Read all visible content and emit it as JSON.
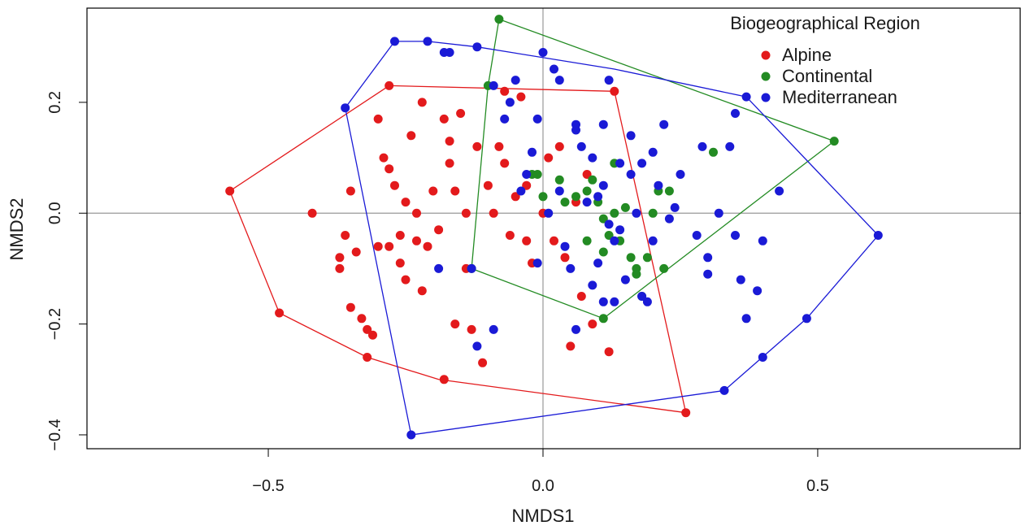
{
  "chart_data": {
    "type": "scatter",
    "xlabel": "NMDS1",
    "ylabel": "NMDS2",
    "xlim": [
      -0.83,
      0.87
    ],
    "ylim": [
      -0.425,
      0.37
    ],
    "xticks": [
      -0.5,
      0.0,
      0.5
    ],
    "xtick_labels": [
      "−0.5",
      "0.0",
      "0.5"
    ],
    "yticks": [
      -0.4,
      -0.2,
      0.0,
      0.2
    ],
    "ytick_labels": [
      "−0.4",
      "−0.2",
      "0.0",
      "0.2"
    ],
    "reference_lines": {
      "x": 0,
      "y": 0,
      "color": "#999999"
    },
    "legend": {
      "title": "Biogeographical Region",
      "placement": "top-right"
    },
    "series": [
      {
        "name": "Alpine",
        "color": "#e31a1c",
        "hull": [
          [
            -0.57,
            0.04
          ],
          [
            -0.48,
            -0.18
          ],
          [
            -0.32,
            -0.26
          ],
          [
            -0.19,
            -0.3
          ],
          [
            0.26,
            -0.36
          ],
          [
            0.13,
            0.22
          ],
          [
            -0.28,
            0.23
          ]
        ],
        "points": [
          [
            -0.57,
            0.04
          ],
          [
            -0.48,
            -0.18
          ],
          [
            -0.42,
            0.0
          ],
          [
            -0.37,
            -0.08
          ],
          [
            -0.37,
            -0.1
          ],
          [
            -0.36,
            -0.04
          ],
          [
            -0.35,
            -0.17
          ],
          [
            -0.35,
            0.04
          ],
          [
            -0.34,
            -0.07
          ],
          [
            -0.33,
            -0.19
          ],
          [
            -0.32,
            -0.21
          ],
          [
            -0.32,
            -0.26
          ],
          [
            -0.31,
            -0.22
          ],
          [
            -0.3,
            0.17
          ],
          [
            -0.3,
            -0.06
          ],
          [
            -0.29,
            0.1
          ],
          [
            -0.28,
            -0.06
          ],
          [
            -0.28,
            0.08
          ],
          [
            -0.27,
            0.05
          ],
          [
            -0.26,
            -0.04
          ],
          [
            -0.26,
            -0.09
          ],
          [
            -0.25,
            0.02
          ],
          [
            -0.25,
            -0.12
          ],
          [
            -0.24,
            0.14
          ],
          [
            -0.23,
            0.0
          ],
          [
            -0.23,
            -0.05
          ],
          [
            -0.22,
            0.2
          ],
          [
            -0.22,
            -0.14
          ],
          [
            -0.21,
            -0.06
          ],
          [
            -0.2,
            0.04
          ],
          [
            -0.19,
            -0.03
          ],
          [
            -0.18,
            -0.3
          ],
          [
            -0.18,
            0.17
          ],
          [
            -0.17,
            0.13
          ],
          [
            -0.17,
            0.09
          ],
          [
            -0.16,
            -0.2
          ],
          [
            -0.16,
            0.04
          ],
          [
            -0.15,
            0.18
          ],
          [
            -0.14,
            -0.1
          ],
          [
            -0.14,
            0.0
          ],
          [
            -0.13,
            -0.21
          ],
          [
            -0.12,
            0.12
          ],
          [
            -0.11,
            -0.27
          ],
          [
            -0.1,
            0.05
          ],
          [
            -0.09,
            0.0
          ],
          [
            -0.08,
            0.12
          ],
          [
            -0.07,
            0.22
          ],
          [
            -0.07,
            0.09
          ],
          [
            -0.06,
            -0.04
          ],
          [
            -0.05,
            0.03
          ],
          [
            -0.04,
            0.21
          ],
          [
            -0.03,
            -0.05
          ],
          [
            -0.02,
            -0.09
          ],
          [
            0.0,
            0.0
          ],
          [
            0.01,
            0.1
          ],
          [
            0.02,
            -0.05
          ],
          [
            0.03,
            0.12
          ],
          [
            0.04,
            -0.08
          ],
          [
            0.05,
            -0.24
          ],
          [
            0.06,
            0.02
          ],
          [
            0.07,
            -0.15
          ],
          [
            0.08,
            0.07
          ],
          [
            0.09,
            -0.2
          ],
          [
            0.12,
            -0.25
          ],
          [
            0.26,
            -0.36
          ],
          [
            0.13,
            0.22
          ],
          [
            -0.28,
            0.23
          ],
          [
            -0.03,
            0.05
          ]
        ]
      },
      {
        "name": "Continental",
        "color": "#238b23",
        "hull": [
          [
            -0.13,
            -0.1
          ],
          [
            0.11,
            -0.19
          ],
          [
            0.53,
            0.13
          ],
          [
            -0.08,
            0.35
          ],
          [
            -0.1,
            0.23
          ]
        ],
        "points": [
          [
            -0.13,
            -0.1
          ],
          [
            -0.08,
            0.35
          ],
          [
            -0.1,
            0.23
          ],
          [
            -0.02,
            0.07
          ],
          [
            -0.01,
            0.07
          ],
          [
            0.0,
            0.03
          ],
          [
            0.03,
            0.06
          ],
          [
            0.04,
            0.02
          ],
          [
            0.06,
            0.03
          ],
          [
            0.08,
            0.04
          ],
          [
            0.09,
            0.06
          ],
          [
            0.1,
            0.02
          ],
          [
            0.11,
            -0.01
          ],
          [
            0.11,
            -0.07
          ],
          [
            0.12,
            -0.04
          ],
          [
            0.13,
            0.09
          ],
          [
            0.13,
            0.0
          ],
          [
            0.14,
            -0.05
          ],
          [
            0.15,
            0.01
          ],
          [
            0.16,
            -0.08
          ],
          [
            0.17,
            -0.1
          ],
          [
            0.17,
            -0.11
          ],
          [
            0.18,
            -0.15
          ],
          [
            0.19,
            -0.08
          ],
          [
            0.2,
            0.0
          ],
          [
            0.21,
            0.04
          ],
          [
            0.22,
            -0.1
          ],
          [
            0.23,
            0.04
          ],
          [
            0.31,
            0.11
          ],
          [
            0.53,
            0.13
          ],
          [
            0.11,
            -0.19
          ],
          [
            0.08,
            -0.05
          ]
        ]
      },
      {
        "name": "Mediterranean",
        "color": "#1a1ad6",
        "hull": [
          [
            -0.24,
            -0.4
          ],
          [
            0.33,
            -0.32
          ],
          [
            0.48,
            -0.19
          ],
          [
            0.61,
            -0.04
          ],
          [
            0.37,
            0.21
          ],
          [
            0.13,
            0.26
          ],
          [
            -0.12,
            0.3
          ],
          [
            -0.21,
            0.31
          ],
          [
            -0.27,
            0.31
          ],
          [
            -0.36,
            0.19
          ]
        ],
        "points": [
          [
            -0.36,
            0.19
          ],
          [
            -0.27,
            0.31
          ],
          [
            -0.21,
            0.31
          ],
          [
            -0.18,
            0.29
          ],
          [
            -0.17,
            0.29
          ],
          [
            -0.12,
            0.3
          ],
          [
            -0.19,
            -0.1
          ],
          [
            -0.13,
            -0.1
          ],
          [
            -0.12,
            -0.24
          ],
          [
            -0.09,
            -0.21
          ],
          [
            -0.09,
            0.23
          ],
          [
            -0.07,
            0.17
          ],
          [
            -0.06,
            0.2
          ],
          [
            -0.05,
            0.24
          ],
          [
            -0.04,
            0.04
          ],
          [
            -0.03,
            0.07
          ],
          [
            -0.02,
            0.11
          ],
          [
            -0.01,
            0.17
          ],
          [
            -0.01,
            -0.09
          ],
          [
            0.0,
            0.29
          ],
          [
            0.01,
            0.0
          ],
          [
            0.02,
            0.26
          ],
          [
            0.03,
            0.24
          ],
          [
            0.03,
            0.04
          ],
          [
            0.04,
            -0.06
          ],
          [
            0.05,
            -0.1
          ],
          [
            0.06,
            0.16
          ],
          [
            0.06,
            -0.21
          ],
          [
            0.07,
            0.12
          ],
          [
            0.08,
            0.02
          ],
          [
            0.09,
            0.1
          ],
          [
            0.09,
            -0.13
          ],
          [
            0.1,
            0.03
          ],
          [
            0.1,
            -0.09
          ],
          [
            0.11,
            0.05
          ],
          [
            0.11,
            -0.16
          ],
          [
            0.12,
            0.24
          ],
          [
            0.12,
            -0.02
          ],
          [
            0.13,
            -0.16
          ],
          [
            0.14,
            0.09
          ],
          [
            0.14,
            -0.03
          ],
          [
            0.15,
            -0.12
          ],
          [
            0.16,
            0.14
          ],
          [
            0.16,
            0.07
          ],
          [
            0.17,
            0.0
          ],
          [
            0.18,
            0.09
          ],
          [
            0.18,
            -0.15
          ],
          [
            0.19,
            -0.16
          ],
          [
            0.2,
            0.11
          ],
          [
            0.2,
            -0.05
          ],
          [
            0.21,
            0.05
          ],
          [
            0.22,
            0.16
          ],
          [
            0.23,
            -0.01
          ],
          [
            0.24,
            0.01
          ],
          [
            0.25,
            0.07
          ],
          [
            0.28,
            -0.04
          ],
          [
            0.29,
            0.12
          ],
          [
            0.3,
            -0.08
          ],
          [
            0.3,
            -0.11
          ],
          [
            0.32,
            0.0
          ],
          [
            0.34,
            0.12
          ],
          [
            0.35,
            -0.04
          ],
          [
            0.35,
            0.18
          ],
          [
            0.36,
            -0.12
          ],
          [
            0.37,
            -0.19
          ],
          [
            0.39,
            -0.14
          ],
          [
            0.4,
            -0.05
          ],
          [
            0.43,
            0.04
          ],
          [
            0.37,
            0.21
          ],
          [
            0.61,
            -0.04
          ],
          [
            0.48,
            -0.19
          ],
          [
            0.4,
            -0.26
          ],
          [
            0.33,
            -0.32
          ],
          [
            -0.24,
            -0.4
          ],
          [
            0.06,
            0.15
          ],
          [
            0.11,
            0.16
          ],
          [
            0.13,
            -0.05
          ]
        ]
      }
    ]
  }
}
